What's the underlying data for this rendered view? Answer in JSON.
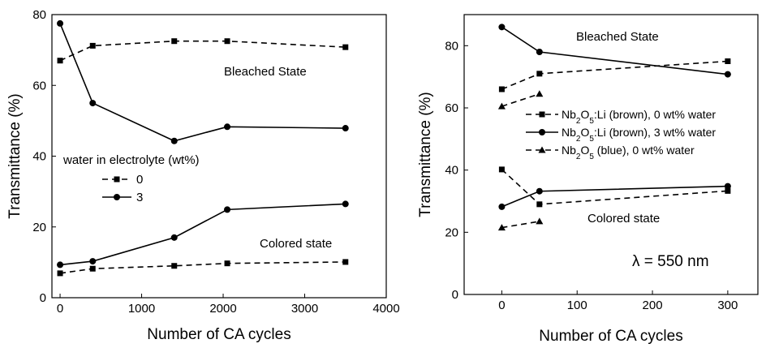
{
  "chart_data": [
    {
      "type": "line",
      "xlabel": "Number of CA cycles",
      "ylabel": "Transmittance (%)",
      "xlim": [
        -100,
        4000
      ],
      "ylim": [
        0,
        80
      ],
      "xticks": [
        0,
        1000,
        2000,
        3000,
        4000
      ],
      "yticks": [
        0,
        20,
        40,
        60,
        80
      ],
      "legend_title": "water in electrolyte (wt%)",
      "legend_placement": "center-left",
      "annotations": [
        "Bleached State",
        "Colored state"
      ],
      "series": [
        {
          "name": "0",
          "marker": "square",
          "line": "dashed",
          "group": "bleached",
          "x": [
            0,
            400,
            1400,
            2050,
            3500
          ],
          "y": [
            67,
            71.2,
            72.5,
            72.5,
            70.8
          ]
        },
        {
          "name": "3",
          "marker": "circle",
          "line": "solid",
          "group": "bleached",
          "x": [
            0,
            400,
            1400,
            2050,
            3500
          ],
          "y": [
            77.5,
            55,
            44.3,
            48.3,
            47.9
          ]
        },
        {
          "name": "0",
          "marker": "square",
          "line": "dashed",
          "group": "colored",
          "x": [
            0,
            400,
            1400,
            2050,
            3500
          ],
          "y": [
            6.9,
            8.2,
            9,
            9.7,
            10.1
          ]
        },
        {
          "name": "3",
          "marker": "circle",
          "line": "solid",
          "group": "colored",
          "x": [
            0,
            400,
            1400,
            2050,
            3500
          ],
          "y": [
            9.3,
            10.3,
            17,
            24.9,
            26.5
          ]
        }
      ],
      "legend": [
        {
          "label": "0",
          "marker": "square",
          "line": "dashed"
        },
        {
          "label": "3",
          "marker": "circle",
          "line": "solid"
        }
      ]
    },
    {
      "type": "line",
      "xlabel": "Number of CA cycles",
      "ylabel": "Transmittance (%)",
      "xlim": [
        -50,
        340
      ],
      "ylim": [
        0,
        90
      ],
      "xticks": [
        0,
        100,
        200,
        300
      ],
      "yticks": [
        0,
        20,
        40,
        60,
        80
      ],
      "legend_placement": "center-right",
      "annotations": [
        "Bleached State",
        "Colored state",
        "λ = 550 nm"
      ],
      "series": [
        {
          "name": "Nb2O5:Li (brown), 0 wt% water",
          "marker": "square",
          "line": "dashed",
          "group": "bleached",
          "x": [
            0,
            50,
            300
          ],
          "y": [
            66,
            71,
            75
          ]
        },
        {
          "name": "Nb2O5:Li (brown), 3 wt% water",
          "marker": "circle",
          "line": "solid",
          "group": "bleached",
          "x": [
            0,
            50,
            300
          ],
          "y": [
            86,
            78,
            70.8
          ]
        },
        {
          "name": "Nb2O5 (blue), 0 wt% water",
          "marker": "triangle",
          "line": "dashed",
          "group": "bleached",
          "x": [
            0,
            50
          ],
          "y": [
            60.5,
            64.5
          ]
        },
        {
          "name": "Nb2O5:Li (brown), 0 wt% water",
          "marker": "square",
          "line": "dashed",
          "group": "colored",
          "x": [
            0,
            50,
            300
          ],
          "y": [
            40.2,
            29,
            33.3
          ]
        },
        {
          "name": "Nb2O5:Li (brown), 3 wt% water",
          "marker": "circle",
          "line": "solid",
          "group": "colored",
          "x": [
            0,
            50,
            300
          ],
          "y": [
            28.2,
            33.2,
            34.8
          ]
        },
        {
          "name": "Nb2O5 (blue), 0 wt% water",
          "marker": "triangle",
          "line": "dashed",
          "group": "colored",
          "x": [
            0,
            50
          ],
          "y": [
            21.5,
            23.5
          ]
        }
      ],
      "legend": [
        {
          "base": "Nb",
          "sub1": "2",
          "mid": "O",
          "sub2": "5",
          "rest": ":Li (brown), 0 wt% water",
          "marker": "square",
          "line": "dashed"
        },
        {
          "base": "Nb",
          "sub1": "2",
          "mid": "O",
          "sub2": "5",
          "rest": ":Li (brown), 3 wt% water",
          "marker": "circle",
          "line": "solid"
        },
        {
          "base": "Nb",
          "sub1": "2",
          "mid": "O",
          "sub2": "5",
          "rest": " (blue), 0 wt% water",
          "marker": "triangle",
          "line": "dashed"
        }
      ]
    }
  ]
}
